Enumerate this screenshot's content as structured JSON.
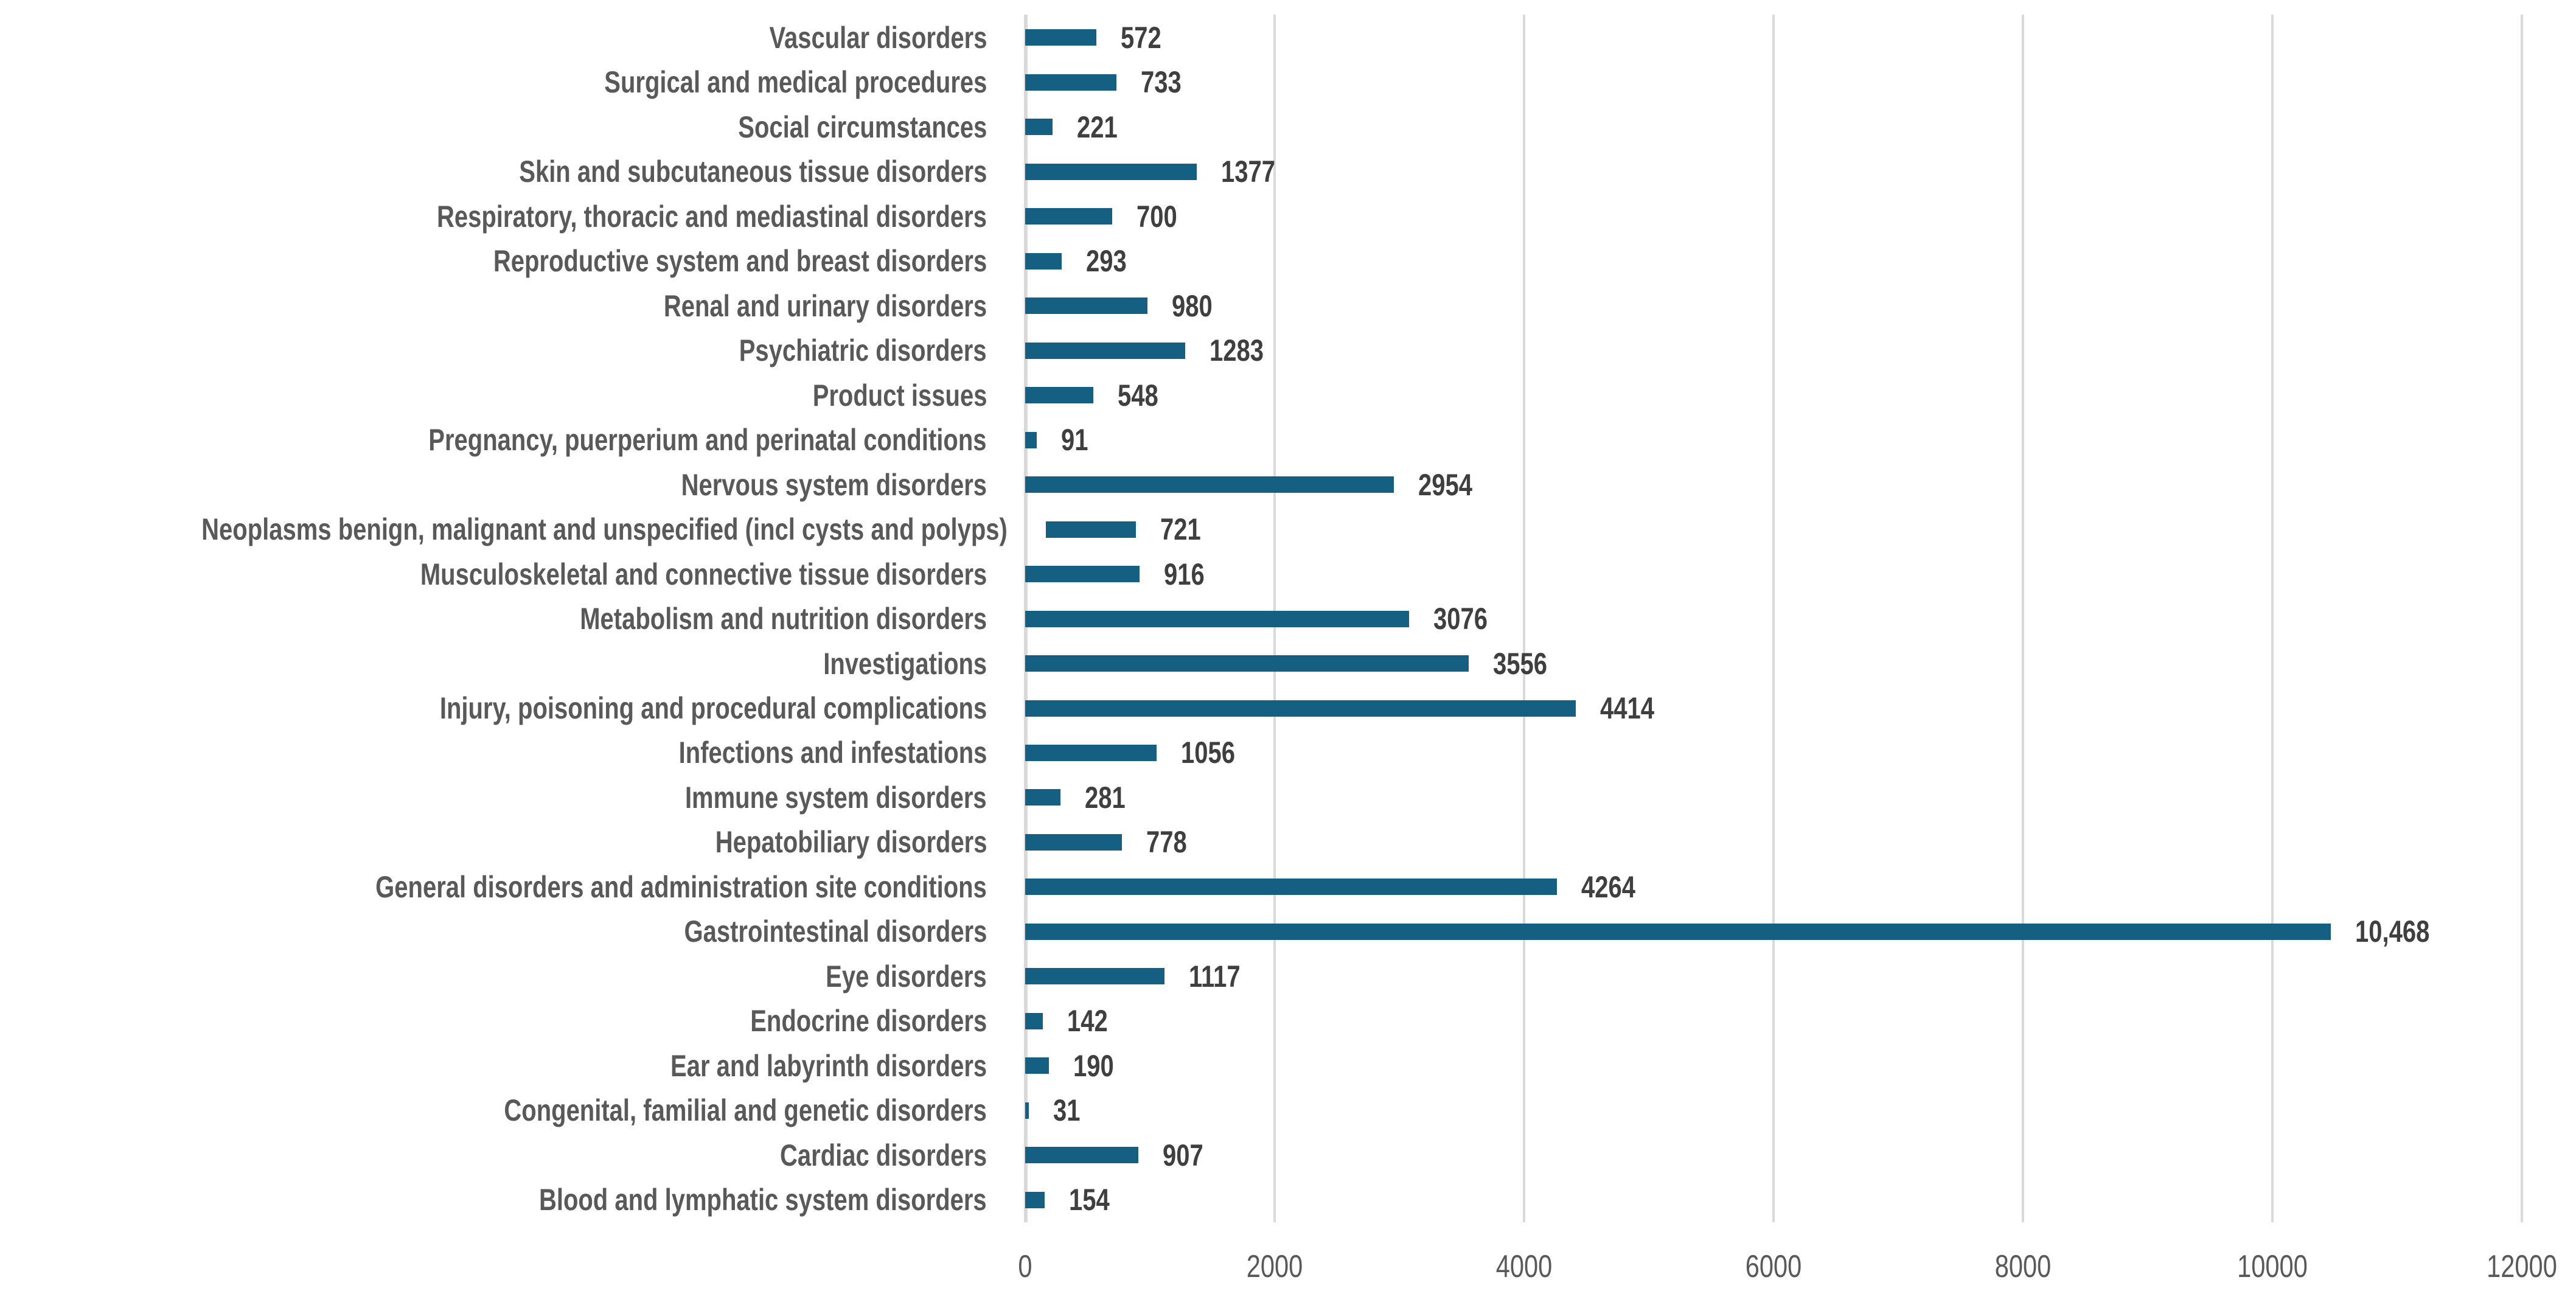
{
  "chart_data": {
    "type": "bar",
    "orientation": "horizontal",
    "title": "",
    "xlabel": "",
    "ylabel": "",
    "categories": [
      "Vascular disorders",
      "Surgical and medical procedures",
      "Social circumstances",
      "Skin and subcutaneous tissue disorders",
      "Respiratory, thoracic and mediastinal disorders",
      "Reproductive system and breast disorders",
      "Renal and urinary disorders",
      "Psychiatric disorders",
      "Product issues",
      "Pregnancy, puerperium and perinatal conditions",
      "Nervous system disorders",
      "Neoplasms benign, malignant and unspecified (incl cysts and polyps)",
      "Musculoskeletal and connective tissue disorders",
      "Metabolism and nutrition disorders",
      "Investigations",
      "Injury, poisoning and procedural complications",
      "Infections and infestations",
      "Immune system disorders",
      "Hepatobiliary disorders",
      "General disorders and administration site conditions",
      "Gastrointestinal disorders",
      "Eye disorders",
      "Endocrine disorders",
      "Ear and labyrinth disorders",
      "Congenital, familial and genetic disorders",
      "Cardiac disorders",
      "Blood and lymphatic system disorders"
    ],
    "values": [
      572,
      733,
      221,
      1377,
      700,
      293,
      980,
      1283,
      548,
      91,
      2954,
      721,
      916,
      3076,
      3556,
      4414,
      1056,
      281,
      778,
      4264,
      10468,
      1117,
      142,
      190,
      31,
      907,
      154
    ],
    "value_labels": [
      "572",
      "733",
      "221",
      "1377",
      "700",
      "293",
      "980",
      "1283",
      "548",
      "91",
      "2954",
      "721",
      "916",
      "3076",
      "3556",
      "4414",
      "1056",
      "281",
      "778",
      "4264",
      "10,468",
      "1117",
      "142",
      "190",
      "31",
      "907",
      "154"
    ],
    "xlim": [
      0,
      12000
    ],
    "x_ticks": [
      0,
      2000,
      4000,
      6000,
      8000,
      10000,
      12000
    ],
    "x_tick_labels": [
      "0",
      "2000",
      "4000",
      "6000",
      "8000",
      "10000",
      "12000"
    ],
    "grid": "vertical-gridlines-on",
    "legend": "none",
    "colors": {
      "bar": "#156082",
      "value_label": "#3F3F3F",
      "category_label": "#595959",
      "tick_label": "#595959",
      "gridline": "#D9D9D9",
      "background": "#FFFFFF"
    }
  }
}
